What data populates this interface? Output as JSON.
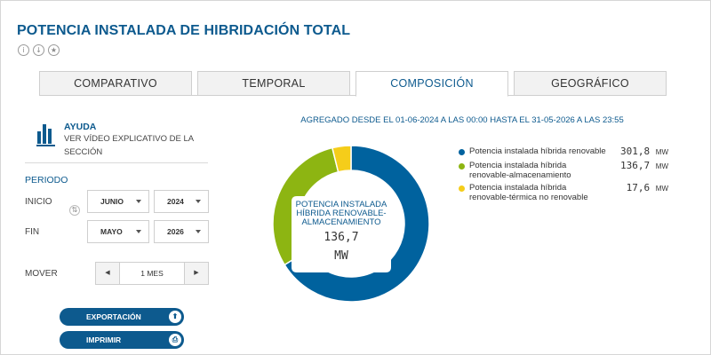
{
  "page": {
    "title": "POTENCIA INSTALADA DE HIBRIDACIÓN TOTAL"
  },
  "title_icons": [
    {
      "icon": "info-icon",
      "glyph": "i"
    },
    {
      "icon": "download-icon",
      "glyph": "↓"
    },
    {
      "icon": "star-icon",
      "glyph": "★"
    }
  ],
  "tabs": [
    {
      "label": "COMPARATIVO",
      "active": false
    },
    {
      "label": "TEMPORAL",
      "active": false
    },
    {
      "label": "COMPOSICIÓN",
      "active": true
    },
    {
      "label": "GEOGRÁFICO",
      "active": false
    }
  ],
  "help": {
    "icon": "bar-chart-icon",
    "title": "AYUDA",
    "text": "VER VÍDEO EXPLICATIVO DE LA SECCIÓN"
  },
  "periodo": {
    "label": "PERIODO",
    "inicio": {
      "label": "INICIO",
      "month": "JUNIO",
      "year": "2024"
    },
    "fin": {
      "label": "FIN",
      "month": "MAYO",
      "year": "2026"
    },
    "swap_icon": "swap-icon"
  },
  "mover": {
    "label": "MOVER",
    "value": "1 MES",
    "prev_glyph": "◀",
    "next_glyph": "▶"
  },
  "actions": {
    "export_label": "EXPORTACIÓN",
    "export_icon": "upload-icon",
    "print_label": "IMPRIMIR",
    "print_icon": "printer-icon"
  },
  "chart_data": {
    "type": "pie",
    "title": "AGREGADO DESDE EL 01-06-2024 A LAS 00:00 HASTA EL 31-05-2026 A LAS 23:55",
    "donut": true,
    "series": [
      {
        "name": "Potencia instalada híbrida renovable",
        "value": 301.8,
        "value_label": "301,8",
        "unit": "MW",
        "color": "#00629e"
      },
      {
        "name": "Potencia instalada híbrida renovable-almacenamiento",
        "value": 136.7,
        "value_label": "136,7",
        "unit": "MW",
        "color": "#8db512"
      },
      {
        "name": "Potencia instalada híbrida renovable-térmica no renovable",
        "value": 17.6,
        "value_label": "17,6",
        "unit": "MW",
        "color": "#f5cd1a"
      }
    ],
    "highlight": {
      "label": "POTENCIA INSTALADA HÍBRIDA RENOVABLE-ALMACENAMIENTO",
      "value": "136,7",
      "unit": "MW"
    },
    "legend_position": "right"
  }
}
